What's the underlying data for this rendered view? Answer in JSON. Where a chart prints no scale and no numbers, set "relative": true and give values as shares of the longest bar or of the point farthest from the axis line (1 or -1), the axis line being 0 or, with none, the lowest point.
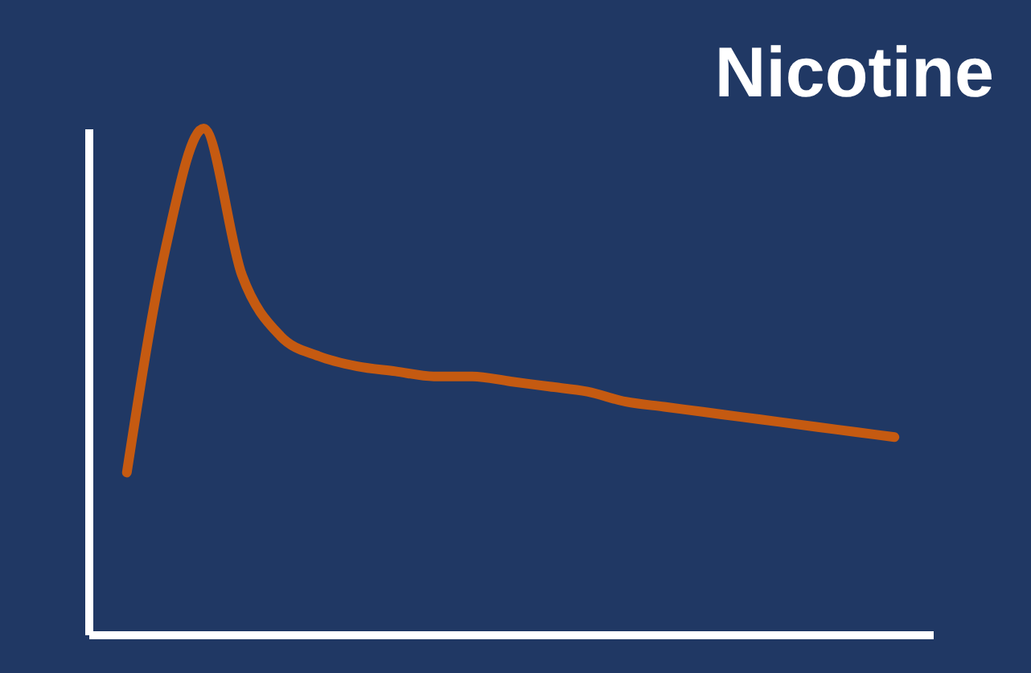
{
  "chart_data": {
    "type": "line",
    "title": "Nicotine",
    "relative": true,
    "categories": [
      null,
      null,
      null,
      null,
      null,
      null,
      null,
      null,
      null,
      null,
      null,
      null,
      null,
      null,
      null,
      null,
      null,
      null,
      null,
      null,
      null
    ],
    "series": [
      {
        "color": "#c55a11",
        "values": [
          0.32,
          0.76,
          1.0,
          0.71,
          0.59,
          0.55,
          0.53,
          0.52,
          0.51,
          0.51,
          0.5,
          0.49,
          0.48,
          0.46,
          0.45,
          0.44,
          0.43,
          0.42,
          0.41,
          0.4,
          0.39
        ]
      }
    ]
  }
}
